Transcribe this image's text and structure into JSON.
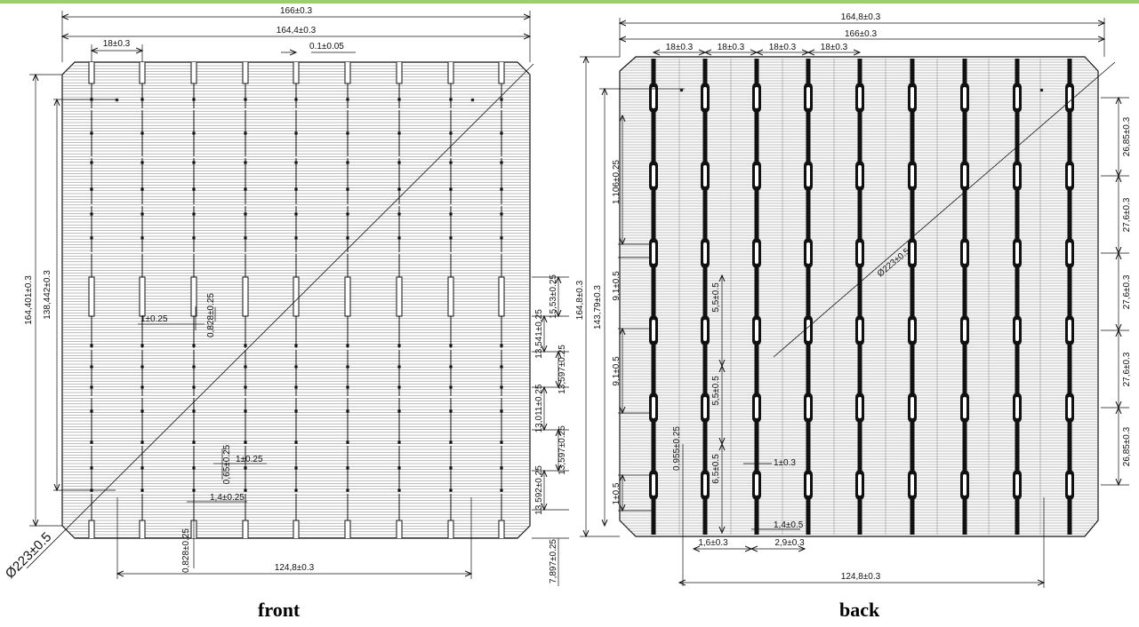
{
  "colors": {
    "accent_bar": "#9bcf6b",
    "ink": "#111111",
    "background": "#ffffff"
  },
  "captions": {
    "front": "front",
    "back": "back"
  },
  "front": {
    "label": "front",
    "dims": {
      "top_outer": "166±0.3",
      "top_inner": "164,4±0.3",
      "pitch_top": "18±0.3",
      "finger_width": "0.1±0.05",
      "left_outer": "164,401±0.3",
      "left_inner": "138,442±0.3",
      "diagonal": "Ø223±0.5",
      "r1": "15,53±0.25",
      "r2": "13,541±0.25",
      "r3": "13,597±0.25",
      "r4": "13,011±0.25",
      "r5": "13,597±0.25",
      "r6": "13,592±0.25",
      "r7": "7,897±0.25",
      "pad_width": "1±0.25",
      "pad_detail": "0,828±0.25",
      "pad_length_a": "1±0.25",
      "pad_detail_b": "0,65±0.25",
      "pad_length_b": "1,4±0.25",
      "bottom_inner": "124,8±0.3",
      "bottom_detail": "0,828±0.25"
    }
  },
  "back": {
    "label": "back",
    "dims": {
      "top_outer": "164,8±0.3",
      "top_inner": "166±0.3",
      "pitch_1": "18±0.3",
      "pitch_2": "18±0.3",
      "pitch_3": "18±0.3",
      "pitch_4": "18±0.3",
      "left_outer": "164,8±0.3",
      "left_inner": "143,79±0.3",
      "v1": "1,106±0.25",
      "v2": "9,1±0.5",
      "v3": "9,1±0.5",
      "v4": "1±0.5",
      "m1": "5,5±0.5",
      "m2": "5,5±0.5",
      "m3": "6,5±0.5",
      "m4": "0,955±0.25",
      "diagonal": "Ø223±0.5",
      "r1": "26,85±0.3",
      "r2": "27,6±0.3",
      "r3": "27,6±0.3",
      "r4": "27,6±0.3",
      "r5": "26,85±0.3",
      "pad_w": "1±0.3",
      "pad_l": "1,4±0.5",
      "gap_a": "1,6±0.3",
      "gap_b": "2,9±0.3",
      "bottom_inner": "124,8±0.3"
    }
  }
}
